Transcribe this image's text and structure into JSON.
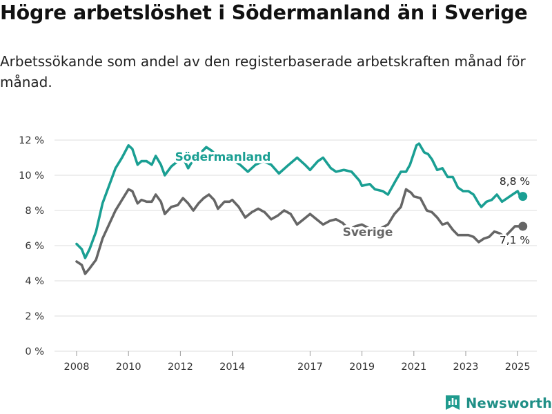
{
  "header": {
    "title": "Högre arbetslöshet i Södermanland än i Sverige",
    "subtitle": "Arbetssökande som andel av den registerbaserade arbetskraften månad för månad."
  },
  "brand": {
    "name": "Newsworthy",
    "icon": "bar-chart-logo-icon",
    "color": "#1f9b8e"
  },
  "chart_data": {
    "type": "line",
    "title": "Högre arbetslöshet i Södermanland än i Sverige",
    "subtitle": "Arbetssökande som andel av den registerbaserade arbetskraften månad för månad.",
    "xlabel": "",
    "ylabel": "",
    "xlim": [
      2007.6,
      2026.0
    ],
    "ylim": [
      0,
      12
    ],
    "y_ticks": [
      0,
      2,
      4,
      6,
      8,
      10,
      12
    ],
    "y_tick_labels": [
      "0 %",
      "2 %",
      "4 %",
      "6 %",
      "8 %",
      "10 %",
      "12 %"
    ],
    "x_ticks": [
      2008,
      2010,
      2012,
      2014,
      2017,
      2019,
      2021,
      2023,
      2025
    ],
    "x_tick_labels": [
      "2008",
      "2010",
      "2012",
      "2014",
      "2017",
      "2019",
      "2021",
      "2023",
      "2025"
    ],
    "grid": "horizontal",
    "legend": "direct labels on lines",
    "series": [
      {
        "name": "Södermanland",
        "color": "#1a9f93",
        "end_label": "8,8 %",
        "points": [
          [
            2008.0,
            6.1
          ],
          [
            2008.2,
            5.8
          ],
          [
            2008.33,
            5.3
          ],
          [
            2008.5,
            5.8
          ],
          [
            2008.75,
            6.8
          ],
          [
            2009.0,
            8.4
          ],
          [
            2009.25,
            9.4
          ],
          [
            2009.5,
            10.4
          ],
          [
            2009.75,
            11.0
          ],
          [
            2010.0,
            11.7
          ],
          [
            2010.15,
            11.5
          ],
          [
            2010.35,
            10.6
          ],
          [
            2010.5,
            10.8
          ],
          [
            2010.7,
            10.8
          ],
          [
            2010.9,
            10.6
          ],
          [
            2011.05,
            11.1
          ],
          [
            2011.25,
            10.6
          ],
          [
            2011.4,
            10.0
          ],
          [
            2011.65,
            10.5
          ],
          [
            2011.9,
            10.8
          ],
          [
            2012.1,
            11.0
          ],
          [
            2012.3,
            10.4
          ],
          [
            2012.5,
            10.9
          ],
          [
            2012.8,
            11.3
          ],
          [
            2013.0,
            11.6
          ],
          [
            2013.2,
            11.4
          ],
          [
            2013.5,
            11.0
          ],
          [
            2013.8,
            11.0
          ],
          [
            2014.0,
            10.9
          ],
          [
            2014.3,
            10.6
          ],
          [
            2014.6,
            10.2
          ],
          [
            2014.9,
            10.6
          ],
          [
            2015.2,
            10.8
          ],
          [
            2015.5,
            10.6
          ],
          [
            2015.8,
            10.1
          ],
          [
            2016.1,
            10.5
          ],
          [
            2016.5,
            11.0
          ],
          [
            2016.8,
            10.6
          ],
          [
            2017.0,
            10.3
          ],
          [
            2017.3,
            10.8
          ],
          [
            2017.5,
            11.0
          ],
          [
            2017.8,
            10.4
          ],
          [
            2018.0,
            10.2
          ],
          [
            2018.3,
            10.3
          ],
          [
            2018.6,
            10.2
          ],
          [
            2018.9,
            9.7
          ],
          [
            2019.0,
            9.4
          ],
          [
            2019.3,
            9.5
          ],
          [
            2019.5,
            9.2
          ],
          [
            2019.8,
            9.1
          ],
          [
            2020.0,
            8.9
          ],
          [
            2020.3,
            9.7
          ],
          [
            2020.5,
            10.2
          ],
          [
            2020.7,
            10.2
          ],
          [
            2020.85,
            10.6
          ],
          [
            2021.1,
            11.7
          ],
          [
            2021.2,
            11.8
          ],
          [
            2021.4,
            11.3
          ],
          [
            2021.55,
            11.2
          ],
          [
            2021.7,
            10.9
          ],
          [
            2021.9,
            10.3
          ],
          [
            2022.1,
            10.4
          ],
          [
            2022.3,
            9.9
          ],
          [
            2022.5,
            9.9
          ],
          [
            2022.7,
            9.3
          ],
          [
            2022.9,
            9.1
          ],
          [
            2023.1,
            9.1
          ],
          [
            2023.3,
            8.9
          ],
          [
            2023.5,
            8.4
          ],
          [
            2023.6,
            8.2
          ],
          [
            2023.8,
            8.5
          ],
          [
            2024.0,
            8.6
          ],
          [
            2024.2,
            8.9
          ],
          [
            2024.4,
            8.5
          ],
          [
            2024.6,
            8.7
          ],
          [
            2024.8,
            8.9
          ],
          [
            2025.0,
            9.1
          ],
          [
            2025.1,
            8.8
          ],
          [
            2025.2,
            8.8
          ]
        ]
      },
      {
        "name": "Sverige",
        "color": "#666666",
        "end_label": "7,1 %",
        "points": [
          [
            2008.0,
            5.1
          ],
          [
            2008.2,
            4.9
          ],
          [
            2008.33,
            4.4
          ],
          [
            2008.5,
            4.7
          ],
          [
            2008.75,
            5.2
          ],
          [
            2009.0,
            6.4
          ],
          [
            2009.25,
            7.2
          ],
          [
            2009.5,
            8.0
          ],
          [
            2009.75,
            8.6
          ],
          [
            2010.0,
            9.2
          ],
          [
            2010.15,
            9.1
          ],
          [
            2010.35,
            8.4
          ],
          [
            2010.5,
            8.6
          ],
          [
            2010.7,
            8.5
          ],
          [
            2010.9,
            8.5
          ],
          [
            2011.05,
            8.9
          ],
          [
            2011.25,
            8.5
          ],
          [
            2011.4,
            7.8
          ],
          [
            2011.65,
            8.2
          ],
          [
            2011.9,
            8.3
          ],
          [
            2012.1,
            8.7
          ],
          [
            2012.3,
            8.4
          ],
          [
            2012.5,
            8.0
          ],
          [
            2012.7,
            8.4
          ],
          [
            2012.9,
            8.7
          ],
          [
            2013.1,
            8.9
          ],
          [
            2013.3,
            8.6
          ],
          [
            2013.45,
            8.1
          ],
          [
            2013.7,
            8.5
          ],
          [
            2013.9,
            8.5
          ],
          [
            2014.0,
            8.6
          ],
          [
            2014.25,
            8.2
          ],
          [
            2014.5,
            7.6
          ],
          [
            2014.75,
            7.9
          ],
          [
            2015.0,
            8.1
          ],
          [
            2015.25,
            7.9
          ],
          [
            2015.5,
            7.5
          ],
          [
            2015.75,
            7.7
          ],
          [
            2016.0,
            8.0
          ],
          [
            2016.25,
            7.8
          ],
          [
            2016.5,
            7.2
          ],
          [
            2016.75,
            7.5
          ],
          [
            2017.0,
            7.8
          ],
          [
            2017.25,
            7.5
          ],
          [
            2017.5,
            7.2
          ],
          [
            2017.75,
            7.4
          ],
          [
            2018.0,
            7.5
          ],
          [
            2018.25,
            7.3
          ],
          [
            2018.5,
            6.9
          ],
          [
            2018.75,
            7.1
          ],
          [
            2019.0,
            7.2
          ],
          [
            2019.25,
            7.0
          ],
          [
            2019.5,
            6.9
          ],
          [
            2019.75,
            7.0
          ],
          [
            2020.0,
            7.2
          ],
          [
            2020.25,
            7.8
          ],
          [
            2020.5,
            8.2
          ],
          [
            2020.7,
            9.2
          ],
          [
            2020.9,
            9.0
          ],
          [
            2021.0,
            8.8
          ],
          [
            2021.25,
            8.7
          ],
          [
            2021.5,
            8.0
          ],
          [
            2021.7,
            7.9
          ],
          [
            2021.9,
            7.6
          ],
          [
            2022.1,
            7.2
          ],
          [
            2022.3,
            7.3
          ],
          [
            2022.5,
            6.9
          ],
          [
            2022.7,
            6.6
          ],
          [
            2022.9,
            6.6
          ],
          [
            2023.1,
            6.6
          ],
          [
            2023.3,
            6.5
          ],
          [
            2023.5,
            6.2
          ],
          [
            2023.7,
            6.4
          ],
          [
            2023.9,
            6.5
          ],
          [
            2024.1,
            6.8
          ],
          [
            2024.3,
            6.7
          ],
          [
            2024.5,
            6.5
          ],
          [
            2024.7,
            6.8
          ],
          [
            2024.9,
            7.1
          ],
          [
            2025.1,
            7.1
          ],
          [
            2025.2,
            7.1
          ]
        ]
      }
    ]
  }
}
